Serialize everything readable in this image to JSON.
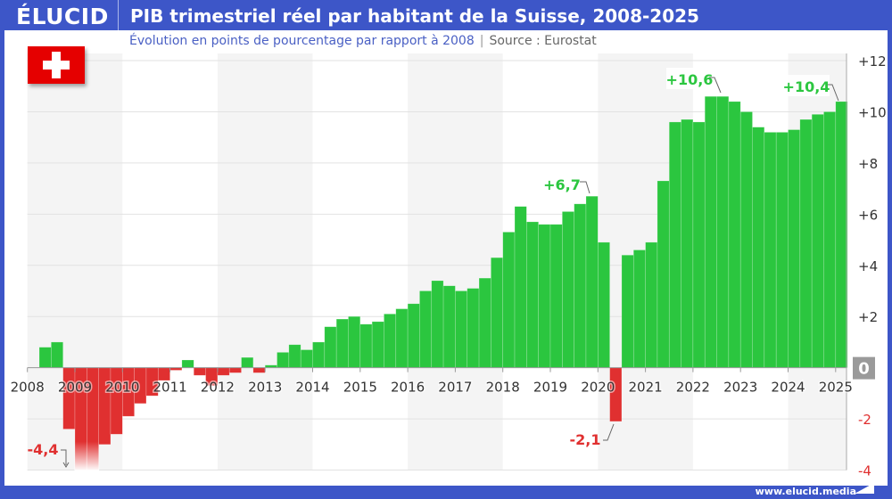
{
  "header": {
    "logo": "ÉLUCID",
    "title": "PIB trimestriel réel par habitant de la Suisse, 2008-2025",
    "subtitle": "Évolution en points de pourcentage par rapport à 2008",
    "source": "Source : Eurostat",
    "flag_icon": "swiss-flag-icon"
  },
  "footer": {
    "url": "www.elucid.media"
  },
  "colors": {
    "positive": "#2bc63f",
    "negative": "#e03030",
    "frame": "#3d56c8",
    "band": "#f4f4f4"
  },
  "chart_data": {
    "type": "bar",
    "title": "PIB trimestriel réel par habitant de la Suisse, 2008-2025",
    "subtitle": "Évolution en points de pourcentage par rapport à 2008",
    "x_start": "2008 T1",
    "frequency": "quarterly",
    "year_ticks": [
      "2008",
      "2009",
      "2010",
      "2011",
      "2012",
      "2013",
      "2014",
      "2015",
      "2016",
      "2017",
      "2018",
      "2019",
      "2020",
      "2021",
      "2022",
      "2023",
      "2024",
      "2025"
    ],
    "y_ticks": [
      "+12",
      "+10",
      "+8",
      "+6",
      "+4",
      "+2",
      "0",
      "-2",
      "-4"
    ],
    "ylim": [
      -4,
      12
    ],
    "y_axis_position": "right",
    "grid": true,
    "values": [
      0,
      0.8,
      1.0,
      -2.4,
      -4.4,
      -4.4,
      -3.0,
      -2.6,
      -1.9,
      -1.4,
      -1.1,
      -0.5,
      -0.1,
      0.3,
      -0.3,
      -0.7,
      -0.3,
      -0.2,
      0.4,
      -0.2,
      0.1,
      0.6,
      0.9,
      0.7,
      1.0,
      1.6,
      1.9,
      2.0,
      1.7,
      1.8,
      2.1,
      2.3,
      2.5,
      3.0,
      3.4,
      3.2,
      3.0,
      3.1,
      3.5,
      4.3,
      5.3,
      6.3,
      5.7,
      5.6,
      5.6,
      6.1,
      6.4,
      6.7,
      4.9,
      -2.1,
      4.4,
      4.6,
      4.9,
      7.3,
      9.6,
      9.7,
      9.6,
      10.6,
      10.6,
      10.4,
      10.0,
      9.4,
      9.2,
      9.2,
      9.3,
      9.7,
      9.9,
      10.0,
      10.4
    ],
    "annotations": [
      {
        "label": "-4,4",
        "index": 4
      },
      {
        "label": "+6,7",
        "index": 47
      },
      {
        "label": "-2,1",
        "index": 49
      },
      {
        "label": "+10,6",
        "index": 58
      },
      {
        "label": "+10,4",
        "index": 68
      }
    ]
  }
}
